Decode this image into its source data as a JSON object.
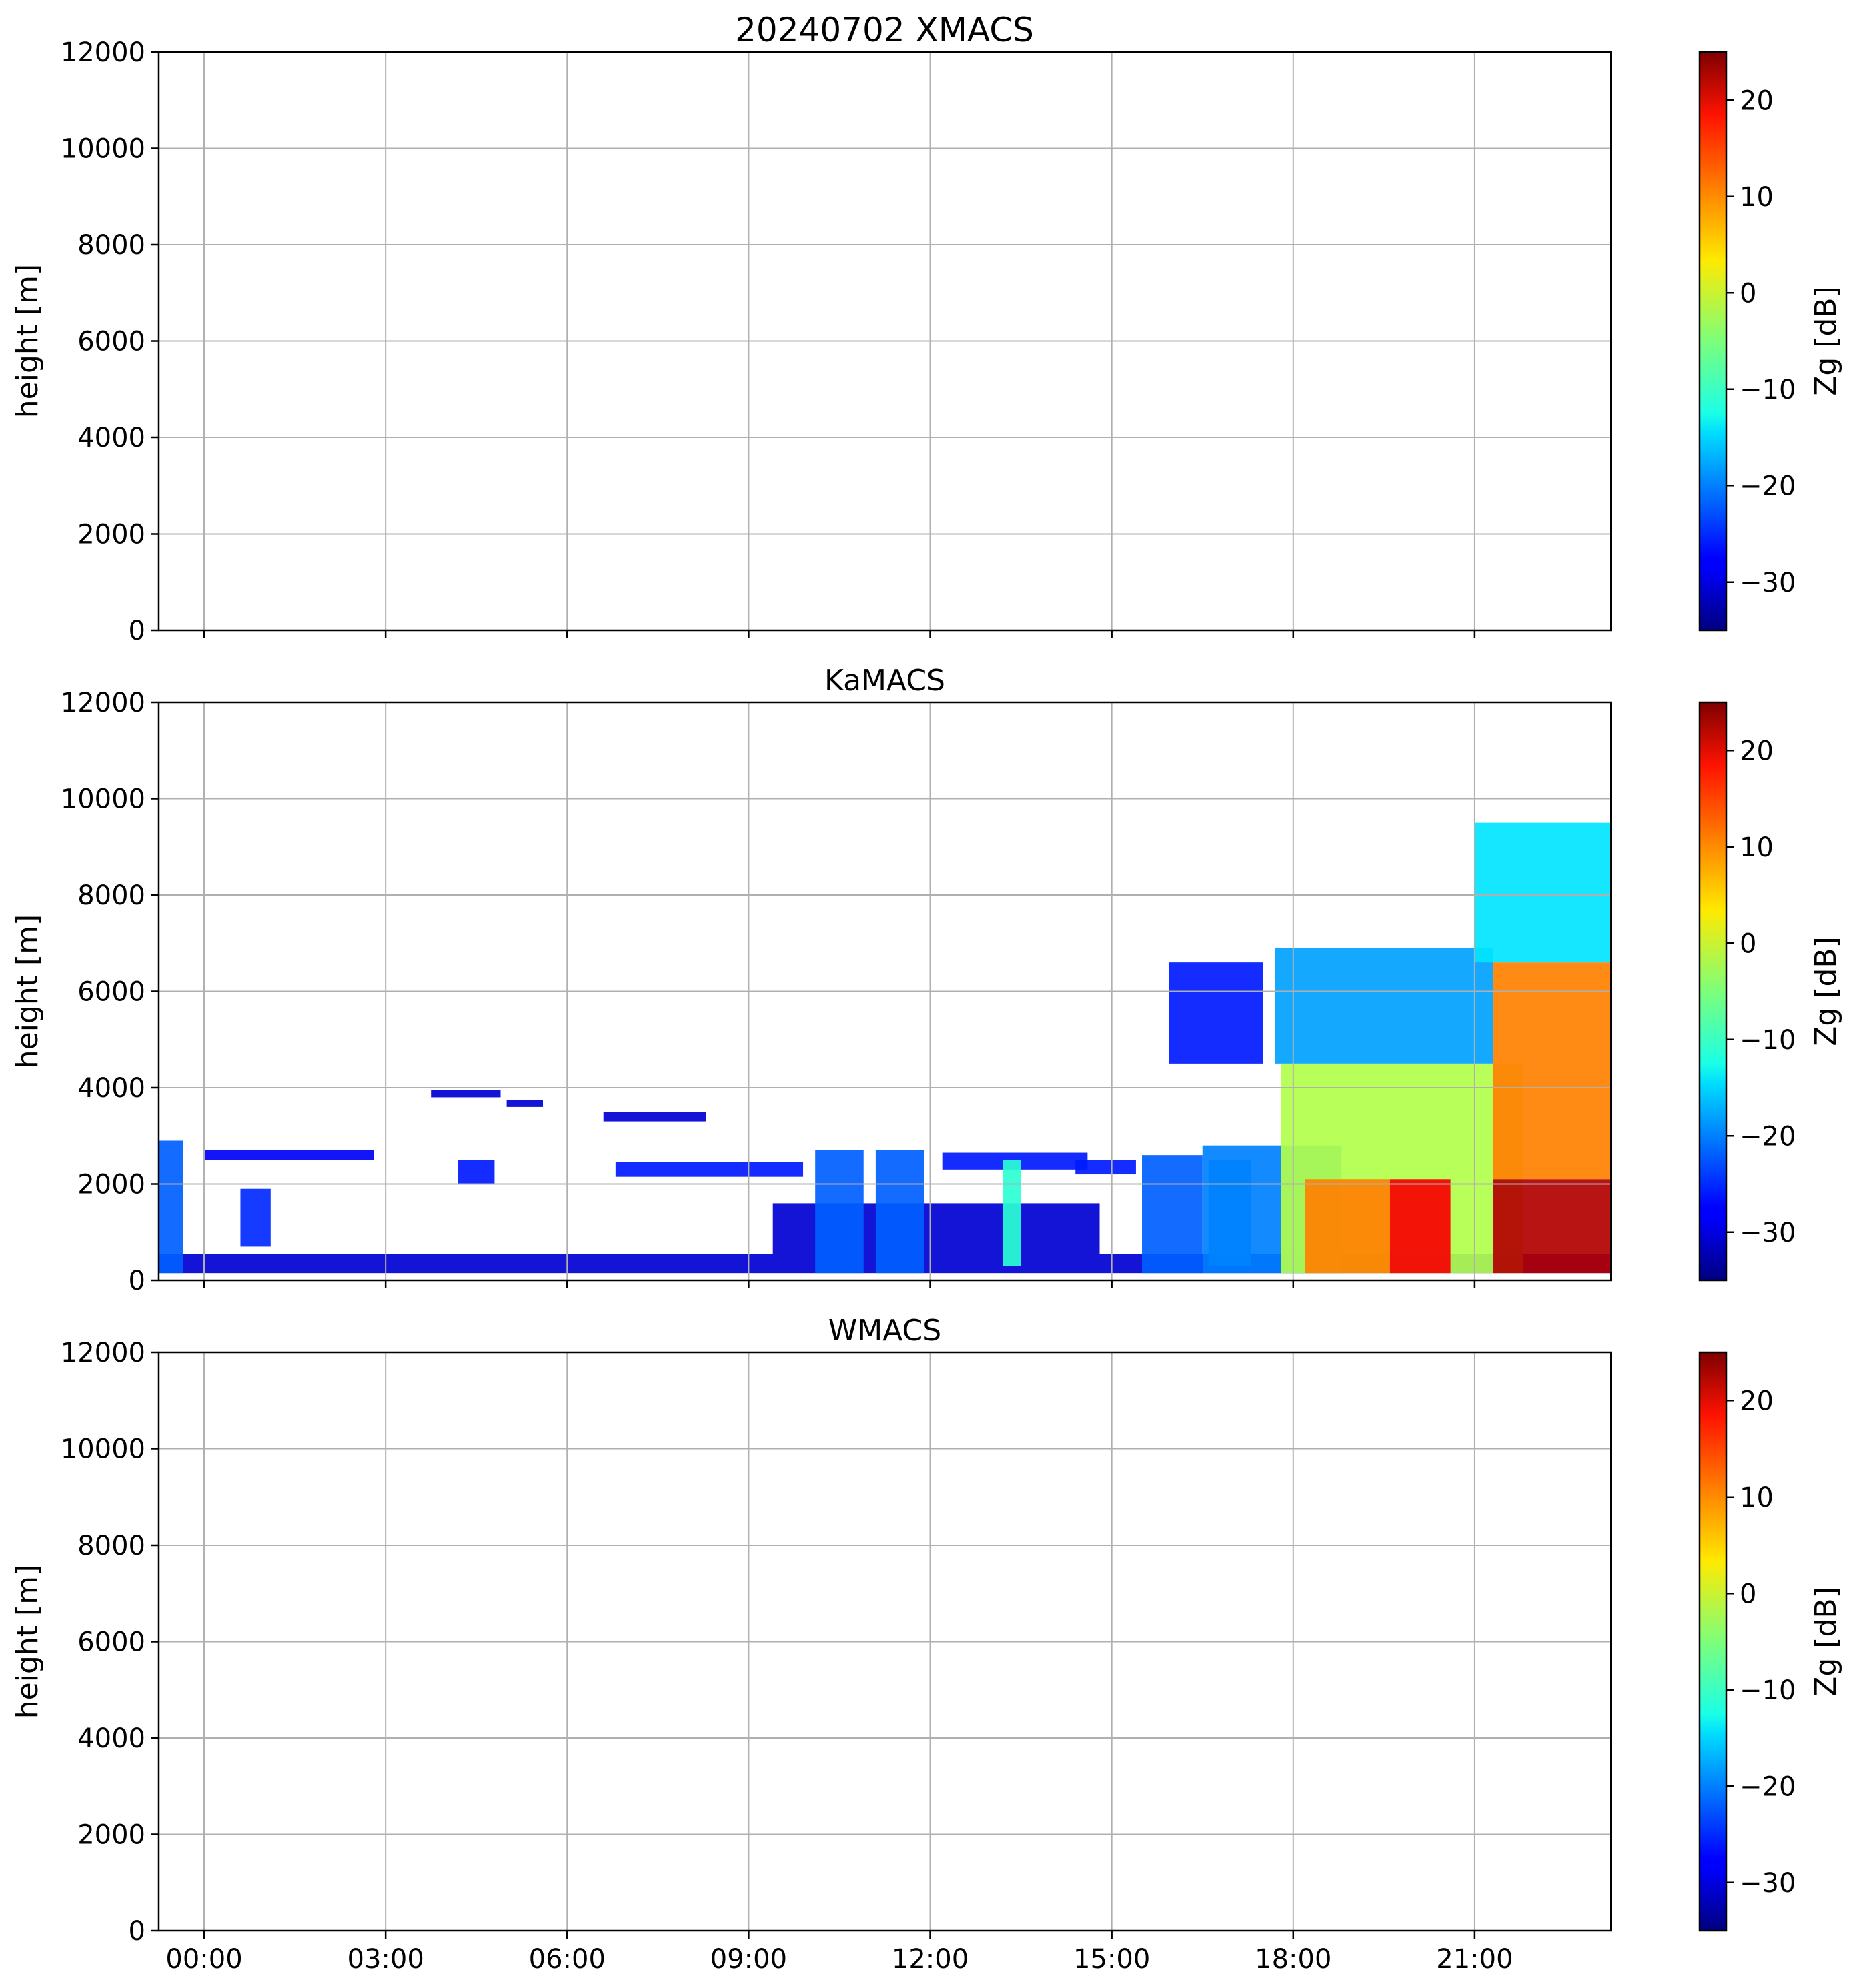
{
  "figure": {
    "title": "20240702 XMACS"
  },
  "chart_data": [
    {
      "type": "heatmap",
      "name": "XMACS",
      "title": "",
      "xlabel": "",
      "ylabel": "height [m]",
      "xlim_hours": [
        -0.75,
        23.25
      ],
      "ylim": [
        0,
        12000
      ],
      "xticks_hours": [
        0,
        3,
        6,
        9,
        12,
        15,
        18,
        21
      ],
      "xtick_labels": [
        "00:00",
        "03:00",
        "06:00",
        "09:00",
        "12:00",
        "15:00",
        "18:00",
        "21:00"
      ],
      "show_xtick_labels": false,
      "yticks": [
        0,
        2000,
        4000,
        6000,
        8000,
        10000,
        12000
      ],
      "ytick_labels": [
        "0",
        "2000",
        "4000",
        "6000",
        "8000",
        "10000",
        "12000"
      ],
      "grid": true,
      "colorbar": {
        "label": "Zg [dB]",
        "vmin": -35,
        "vmax": 25,
        "ticks": [
          -30,
          -20,
          -10,
          0,
          10,
          20
        ],
        "tick_labels": [
          "−30",
          "−20",
          "−10",
          "0",
          "10",
          "20"
        ],
        "colormap": "jet"
      },
      "regions": []
    },
    {
      "type": "heatmap",
      "name": "KaMACS",
      "title": "KaMACS",
      "xlabel": "",
      "ylabel": "height [m]",
      "xlim_hours": [
        -0.75,
        23.25
      ],
      "ylim": [
        0,
        12000
      ],
      "xticks_hours": [
        0,
        3,
        6,
        9,
        12,
        15,
        18,
        21
      ],
      "xtick_labels": [
        "00:00",
        "03:00",
        "06:00",
        "09:00",
        "12:00",
        "15:00",
        "18:00",
        "21:00"
      ],
      "show_xtick_labels": false,
      "yticks": [
        0,
        2000,
        4000,
        6000,
        8000,
        10000,
        12000
      ],
      "ytick_labels": [
        "0",
        "2000",
        "4000",
        "6000",
        "8000",
        "10000",
        "12000"
      ],
      "grid": true,
      "colorbar": {
        "label": "Zg [dB]",
        "vmin": -35,
        "vmax": 25,
        "ticks": [
          -30,
          -20,
          -10,
          0,
          10,
          20
        ],
        "tick_labels": [
          "−30",
          "−20",
          "−10",
          "0",
          "10",
          "20"
        ],
        "colormap": "jet"
      },
      "regions": [
        {
          "t0": -0.75,
          "t1": 23.25,
          "h0": 150,
          "h1": 550,
          "z": -30
        },
        {
          "t0": -0.75,
          "t1": -0.35,
          "h0": 150,
          "h1": 2900,
          "z": -22
        },
        {
          "t0": 0.6,
          "t1": 1.1,
          "h0": 700,
          "h1": 1900,
          "z": -25
        },
        {
          "t0": 0,
          "t1": 2.8,
          "h0": 2500,
          "h1": 2700,
          "z": -28
        },
        {
          "t0": 3.75,
          "t1": 4.9,
          "h0": 3800,
          "h1": 3950,
          "z": -30
        },
        {
          "t0": 5.0,
          "t1": 5.6,
          "h0": 3600,
          "h1": 3750,
          "z": -30
        },
        {
          "t0": 6.6,
          "t1": 8.3,
          "h0": 3300,
          "h1": 3500,
          "z": -30
        },
        {
          "t0": 4.2,
          "t1": 4.8,
          "h0": 2000,
          "h1": 2500,
          "z": -26
        },
        {
          "t0": 6.8,
          "t1": 9.9,
          "h0": 2150,
          "h1": 2450,
          "z": -26
        },
        {
          "t0": 9.4,
          "t1": 14.8,
          "h0": 550,
          "h1": 1600,
          "z": -30
        },
        {
          "t0": 10.1,
          "t1": 10.9,
          "h0": 150,
          "h1": 2700,
          "z": -22
        },
        {
          "t0": 11.1,
          "t1": 11.9,
          "h0": 150,
          "h1": 2700,
          "z": -22
        },
        {
          "t0": 12.2,
          "t1": 14.6,
          "h0": 2300,
          "h1": 2650,
          "z": -26
        },
        {
          "t0": 14.4,
          "t1": 15.4,
          "h0": 2200,
          "h1": 2500,
          "z": -26
        },
        {
          "t0": 13.2,
          "t1": 13.5,
          "h0": 300,
          "h1": 2500,
          "z": -10
        },
        {
          "t0": 15.5,
          "t1": 16.5,
          "h0": 150,
          "h1": 2600,
          "z": -22
        },
        {
          "t0": 16.6,
          "t1": 17.3,
          "h0": 300,
          "h1": 2500,
          "z": -18
        },
        {
          "t0": 16.5,
          "t1": 18.8,
          "h0": 150,
          "h1": 2800,
          "z": -20
        },
        {
          "t0": 15.95,
          "t1": 17.5,
          "h0": 4500,
          "h1": 6600,
          "z": -26
        },
        {
          "t0": 17.7,
          "t1": 21.3,
          "h0": 4500,
          "h1": 6900,
          "z": -18
        },
        {
          "t0": 17.8,
          "t1": 21.8,
          "h0": 150,
          "h1": 4500,
          "z": -2
        },
        {
          "t0": 18.2,
          "t1": 19.6,
          "h0": 150,
          "h1": 2100,
          "z": 10
        },
        {
          "t0": 19.6,
          "t1": 20.6,
          "h0": 150,
          "h1": 2100,
          "z": 18
        },
        {
          "t0": 21.3,
          "t1": 23.25,
          "h0": 2100,
          "h1": 6600,
          "z": 10
        },
        {
          "t0": 21.0,
          "t1": 23.25,
          "h0": 6600,
          "h1": 9500,
          "z": -14
        },
        {
          "t0": 21.3,
          "t1": 23.25,
          "h0": 150,
          "h1": 2100,
          "z": 22
        }
      ]
    },
    {
      "type": "heatmap",
      "name": "WMACS",
      "title": "WMACS",
      "xlabel": "",
      "ylabel": "height [m]",
      "xlim_hours": [
        -0.75,
        23.25
      ],
      "ylim": [
        0,
        12000
      ],
      "xticks_hours": [
        0,
        3,
        6,
        9,
        12,
        15,
        18,
        21
      ],
      "xtick_labels": [
        "00:00",
        "03:00",
        "06:00",
        "09:00",
        "12:00",
        "15:00",
        "18:00",
        "21:00"
      ],
      "show_xtick_labels": true,
      "yticks": [
        0,
        2000,
        4000,
        6000,
        8000,
        10000,
        12000
      ],
      "ytick_labels": [
        "0",
        "2000",
        "4000",
        "6000",
        "8000",
        "10000",
        "12000"
      ],
      "grid": true,
      "colorbar": {
        "label": "Zg [dB]",
        "vmin": -35,
        "vmax": 25,
        "ticks": [
          -30,
          -20,
          -10,
          0,
          10,
          20
        ],
        "tick_labels": [
          "−30",
          "−20",
          "−10",
          "0",
          "10",
          "20"
        ],
        "colormap": "jet"
      },
      "regions": []
    }
  ]
}
